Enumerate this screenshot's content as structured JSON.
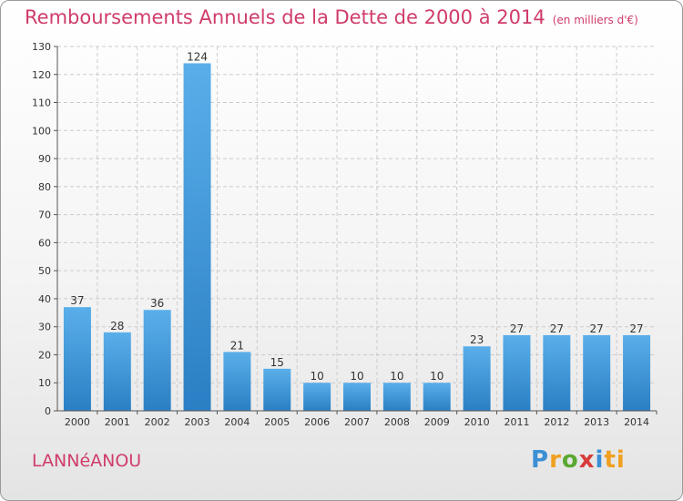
{
  "header": {
    "title": "Remboursements Annuels de la Dette de 2000 à 2014",
    "unit": "(en milliers d'€)"
  },
  "footer": {
    "commune": "LANNéANOU",
    "logo_letters": [
      "P",
      "r",
      "o",
      "x",
      "i",
      "ti"
    ]
  },
  "colors": {
    "title": "#d03c6a",
    "bar_top": "#5aafea",
    "bar_bottom": "#2a7fc4",
    "grid": "#cccccc"
  },
  "chart_data": {
    "type": "bar",
    "categories": [
      "2000",
      "2001",
      "2002",
      "2003",
      "2004",
      "2005",
      "2006",
      "2007",
      "2008",
      "2009",
      "2010",
      "2011",
      "2012",
      "2013",
      "2014"
    ],
    "values": [
      37,
      28,
      36,
      124,
      21,
      15,
      10,
      10,
      10,
      10,
      23,
      27,
      27,
      27,
      27
    ],
    "ylim": [
      0,
      130
    ],
    "yticks": [
      0,
      10,
      20,
      30,
      40,
      50,
      60,
      70,
      80,
      90,
      100,
      110,
      120,
      130
    ],
    "grid": true,
    "xlabel": "",
    "ylabel": ""
  }
}
